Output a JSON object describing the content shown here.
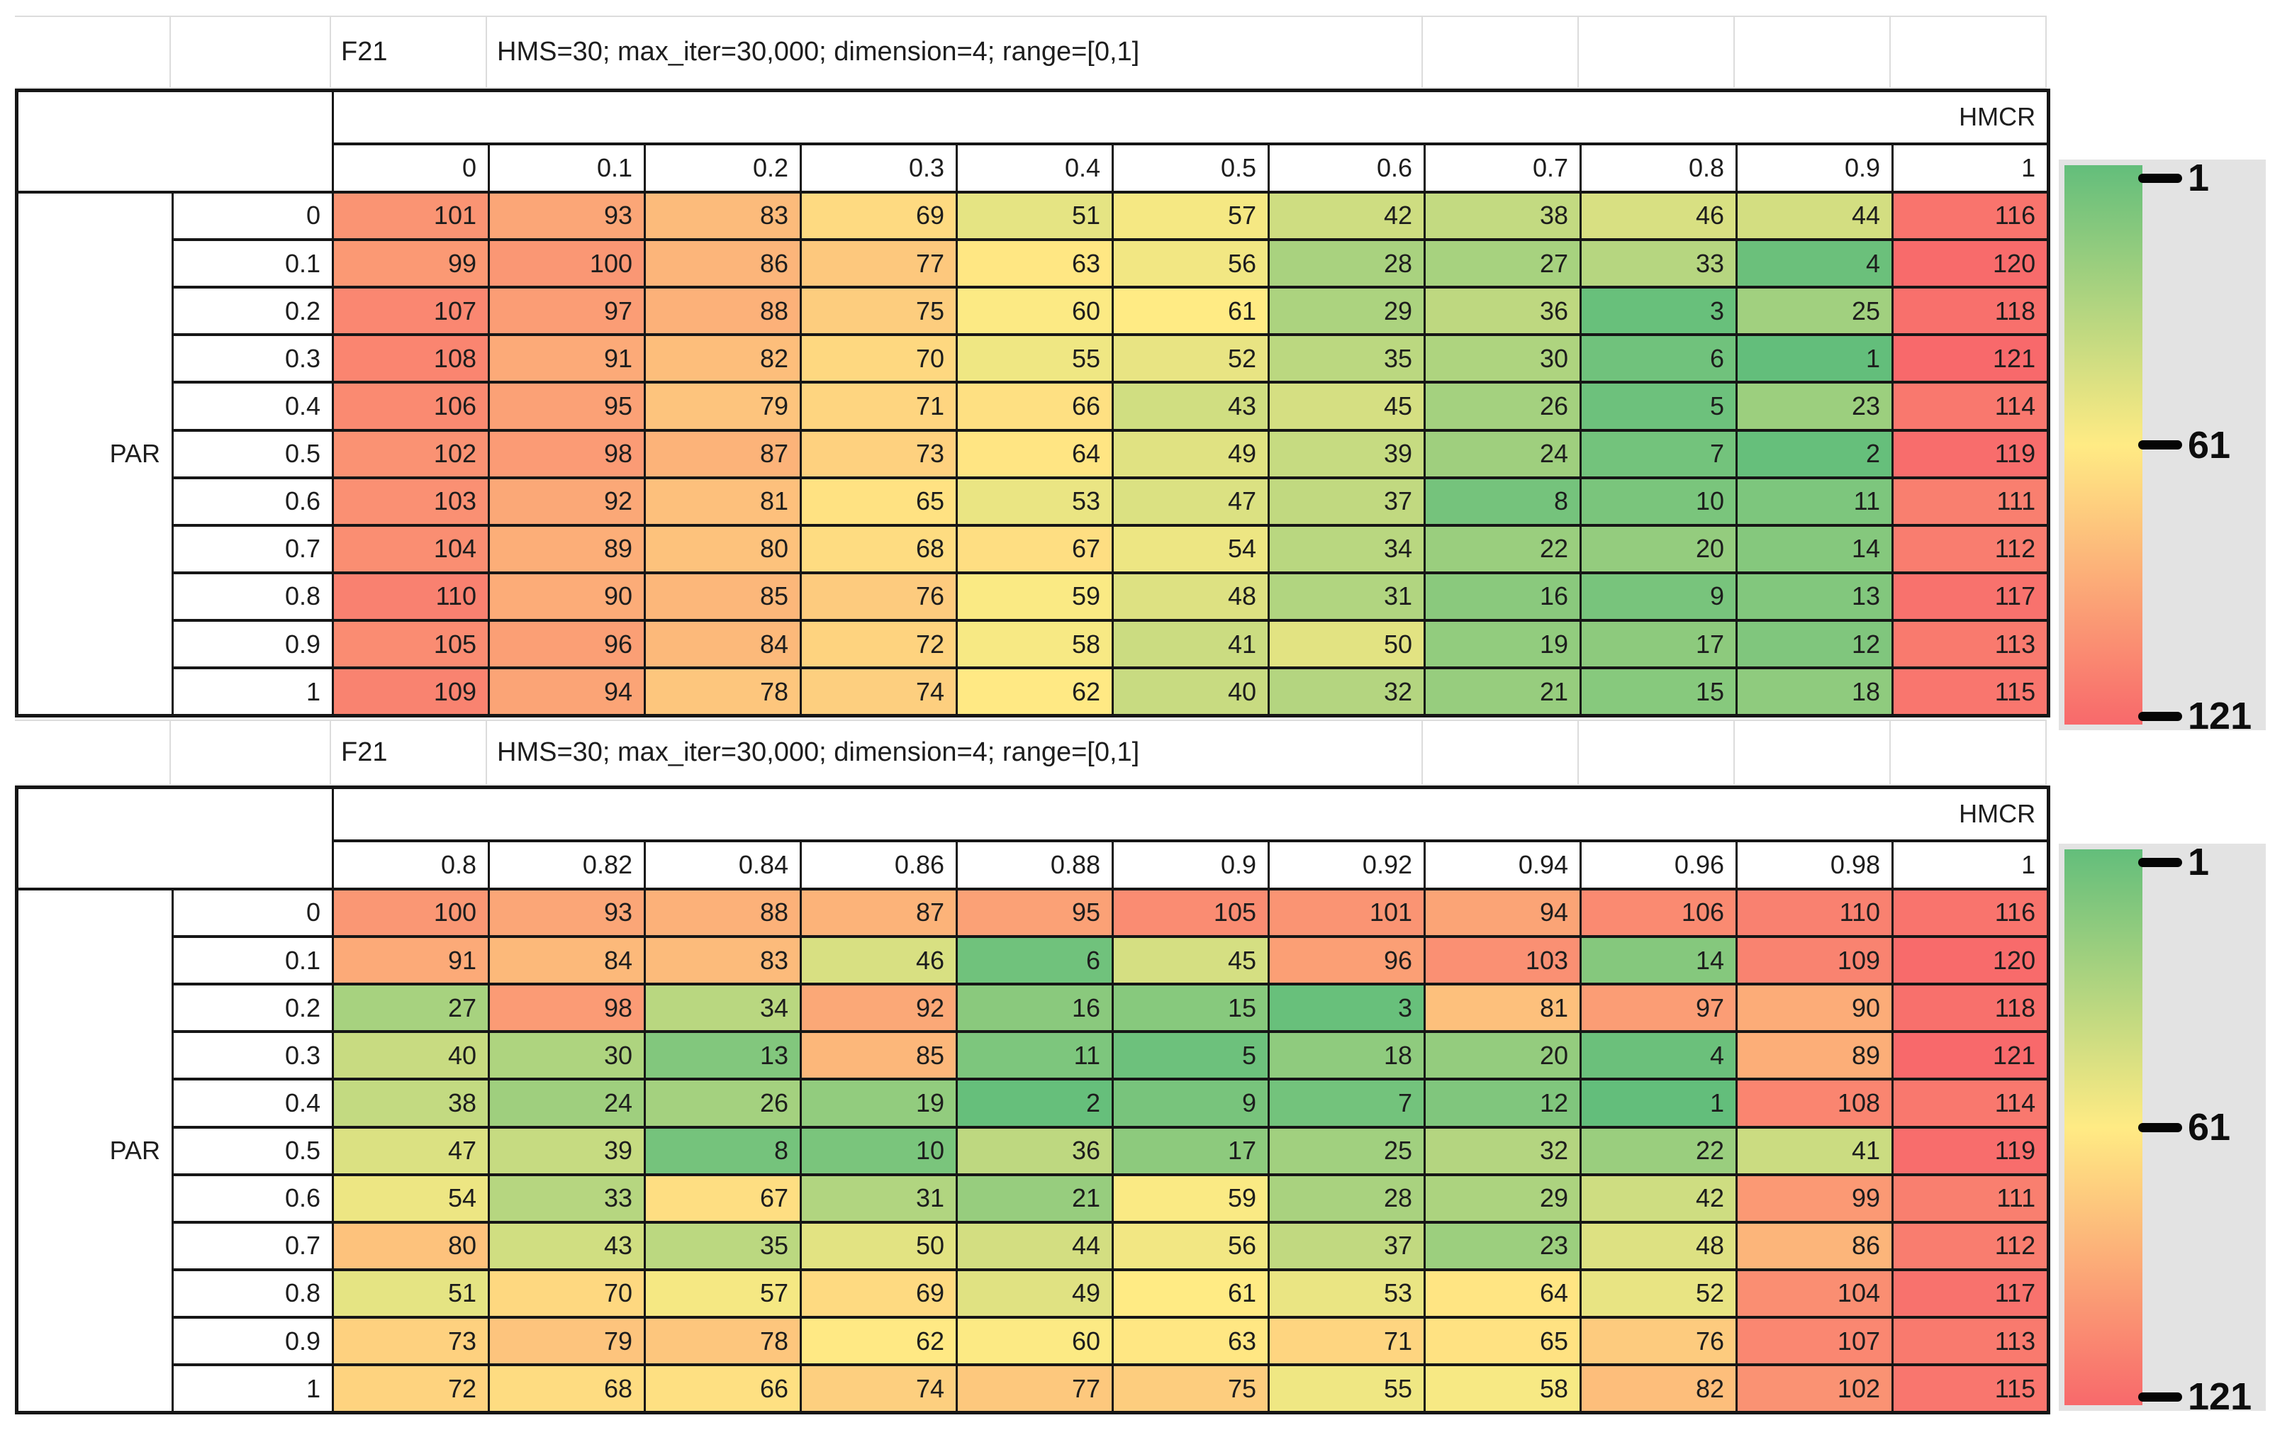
{
  "chart_data": [
    {
      "type": "heatmap",
      "title": "F21",
      "subtitle": "HMS=30; max_iter=30,000; dimension=4; range=[0,1]",
      "xlabel": "HMCR",
      "ylabel": "PAR",
      "x": [
        "0",
        "0.1",
        "0.2",
        "0.3",
        "0.4",
        "0.5",
        "0.6",
        "0.7",
        "0.8",
        "0.9",
        "1"
      ],
      "y": [
        "0",
        "0.1",
        "0.2",
        "0.3",
        "0.4",
        "0.5",
        "0.6",
        "0.7",
        "0.8",
        "0.9",
        "1"
      ],
      "values": [
        [
          101,
          93,
          83,
          69,
          51,
          57,
          42,
          38,
          46,
          44,
          116
        ],
        [
          99,
          100,
          86,
          77,
          63,
          56,
          28,
          27,
          33,
          4,
          120
        ],
        [
          107,
          97,
          88,
          75,
          60,
          61,
          29,
          36,
          3,
          25,
          118
        ],
        [
          108,
          91,
          82,
          70,
          55,
          52,
          35,
          30,
          6,
          1,
          121
        ],
        [
          106,
          95,
          79,
          71,
          66,
          43,
          45,
          26,
          5,
          23,
          114
        ],
        [
          102,
          98,
          87,
          73,
          64,
          49,
          39,
          24,
          7,
          2,
          119
        ],
        [
          103,
          92,
          81,
          65,
          53,
          47,
          37,
          8,
          10,
          11,
          111
        ],
        [
          104,
          89,
          80,
          68,
          67,
          54,
          34,
          22,
          20,
          14,
          112
        ],
        [
          110,
          90,
          85,
          76,
          59,
          48,
          31,
          16,
          9,
          13,
          117
        ],
        [
          105,
          96,
          84,
          72,
          58,
          41,
          50,
          19,
          17,
          12,
          113
        ],
        [
          109,
          94,
          78,
          74,
          62,
          40,
          32,
          21,
          15,
          18,
          115
        ]
      ],
      "colorbar": {
        "position": "right",
        "ticks": [
          1,
          61,
          121
        ],
        "tick_labels": [
          "1",
          "61",
          "121"
        ],
        "min_color": "#63BE7B",
        "mid_color": "#FFEB84",
        "max_color": "#F8696B"
      }
    },
    {
      "type": "heatmap",
      "title": "F21",
      "subtitle": "HMS=30; max_iter=30,000; dimension=4; range=[0,1]",
      "xlabel": "HMCR",
      "ylabel": "PAR",
      "x": [
        "0.8",
        "0.82",
        "0.84",
        "0.86",
        "0.88",
        "0.9",
        "0.92",
        "0.94",
        "0.96",
        "0.98",
        "1"
      ],
      "y": [
        "0",
        "0.1",
        "0.2",
        "0.3",
        "0.4",
        "0.5",
        "0.6",
        "0.7",
        "0.8",
        "0.9",
        "1"
      ],
      "values": [
        [
          100,
          93,
          88,
          87,
          95,
          105,
          101,
          94,
          106,
          110,
          116
        ],
        [
          91,
          84,
          83,
          46,
          6,
          45,
          96,
          103,
          14,
          109,
          120
        ],
        [
          27,
          98,
          34,
          92,
          16,
          15,
          3,
          81,
          97,
          90,
          118
        ],
        [
          40,
          30,
          13,
          85,
          11,
          5,
          18,
          20,
          4,
          89,
          121
        ],
        [
          38,
          24,
          26,
          19,
          2,
          9,
          7,
          12,
          1,
          108,
          114
        ],
        [
          47,
          39,
          8,
          10,
          36,
          17,
          25,
          32,
          22,
          41,
          119
        ],
        [
          54,
          33,
          67,
          31,
          21,
          59,
          28,
          29,
          42,
          99,
          111
        ],
        [
          80,
          43,
          35,
          50,
          44,
          56,
          37,
          23,
          48,
          86,
          112
        ],
        [
          51,
          70,
          57,
          69,
          49,
          61,
          53,
          64,
          52,
          104,
          117
        ],
        [
          73,
          79,
          78,
          62,
          60,
          63,
          71,
          65,
          76,
          107,
          113
        ],
        [
          72,
          68,
          66,
          74,
          77,
          75,
          55,
          58,
          82,
          102,
          115
        ]
      ],
      "colorbar": {
        "position": "right",
        "ticks": [
          1,
          61,
          121
        ],
        "tick_labels": [
          "1",
          "61",
          "121"
        ],
        "min_color": "#63BE7B",
        "mid_color": "#FFEB84",
        "max_color": "#F8696B"
      }
    }
  ]
}
